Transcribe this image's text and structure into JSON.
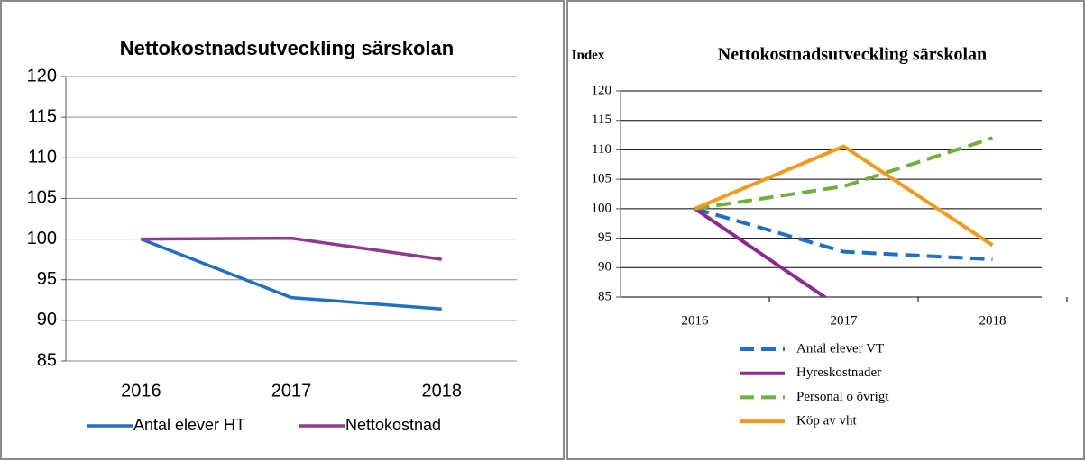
{
  "chart_data": [
    {
      "type": "line",
      "title": "Nettokostnadsutveckling särskolan",
      "categories": [
        "2016",
        "2017",
        "2018"
      ],
      "series": [
        {
          "name": "Antal elever HT",
          "color": "#1f6fc5",
          "values": [
            100,
            92.8,
            91.4
          ]
        },
        {
          "name": "Nettokostnad",
          "color": "#8e3a8e",
          "values": [
            100,
            100.1,
            97.5
          ]
        }
      ],
      "ylim": [
        85,
        120
      ],
      "yticks": [
        85,
        90,
        95,
        100,
        105,
        110,
        115,
        120
      ],
      "grid": true,
      "legend": "bottom"
    },
    {
      "type": "line",
      "title": "Nettokostnadsutveckling särskolan",
      "y_label": "Index",
      "categories": [
        "2016",
        "2017",
        "2018"
      ],
      "series": [
        {
          "name": "Antal elever VT",
          "color": "#1f6fc5",
          "dash": true,
          "values": [
            100,
            92.7,
            91.4
          ]
        },
        {
          "name": "Hyreskostnader",
          "color": "#8e2a8e",
          "values": [
            100,
            82.8,
            null
          ]
        },
        {
          "name": "Personal o övrigt",
          "color": "#6fb03a",
          "dash": true,
          "values": [
            100,
            103.8,
            112
          ]
        },
        {
          "name": "Köp av vht",
          "color": "#f59a18",
          "values": [
            100,
            110.6,
            93.8
          ]
        }
      ],
      "ylim": [
        85,
        120
      ],
      "yticks": [
        85,
        90,
        95,
        100,
        105,
        110,
        115,
        120
      ],
      "grid": true,
      "legend": "bottom"
    }
  ]
}
